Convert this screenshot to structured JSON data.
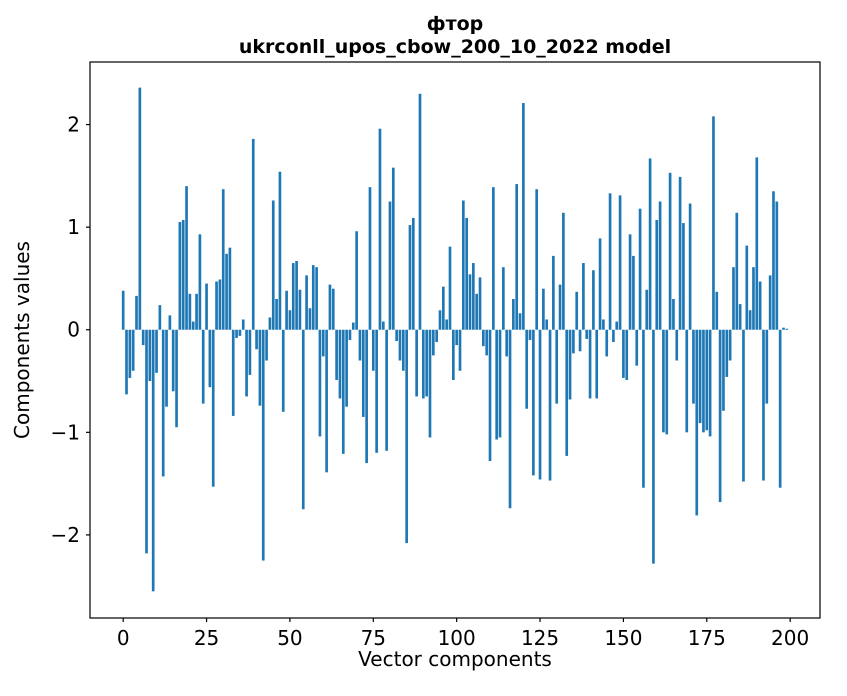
{
  "title": {
    "line1": "фтор",
    "line2": "ukrconll_upos_cbow_200_10_2022 model"
  },
  "axes": {
    "xlabel": "Vector components",
    "ylabel": "Components values"
  },
  "chart_data": {
    "type": "bar",
    "title": "фтор\nukrconll_upos_cbow_200_10_2022 model",
    "xlabel": "Vector components",
    "ylabel": "Components values",
    "x_ticks": [
      0,
      25,
      50,
      75,
      100,
      125,
      150,
      175,
      200
    ],
    "y_ticks": [
      2,
      1,
      0,
      -1,
      -2
    ],
    "xlim": [
      -9.95,
      208.95
    ],
    "ylim": [
      -2.81,
      2.61
    ],
    "grid": false,
    "legend": false,
    "bar_color": "#1f77b4",
    "n_components": 200,
    "values": [
      0.38,
      -0.63,
      -0.47,
      -0.4,
      0.33,
      2.36,
      -0.15,
      -2.18,
      -0.5,
      -2.55,
      -0.42,
      0.24,
      -1.43,
      -0.75,
      0.14,
      -0.6,
      -0.95,
      1.05,
      1.07,
      1.4,
      0.35,
      0.08,
      0.35,
      0.93,
      -0.72,
      0.45,
      -0.56,
      -1.53,
      0.47,
      0.49,
      1.37,
      0.74,
      0.8,
      -0.84,
      -0.08,
      -0.06,
      0.1,
      -0.65,
      -0.44,
      1.86,
      -0.19,
      -0.74,
      -2.25,
      -0.3,
      0.12,
      1.26,
      0.3,
      1.54,
      -0.8,
      0.38,
      0.19,
      0.65,
      0.67,
      0.39,
      -1.75,
      0.53,
      0.21,
      0.63,
      0.61,
      -1.04,
      -0.26,
      -1.39,
      0.44,
      0.4,
      -0.49,
      -0.67,
      -1.21,
      -0.75,
      -0.1,
      0.07,
      0.96,
      -0.3,
      -0.85,
      -1.3,
      1.39,
      -0.4,
      -1.2,
      1.96,
      0.08,
      -1.18,
      1.25,
      1.58,
      -0.11,
      -0.3,
      -0.4,
      -2.08,
      1.02,
      1.09,
      -0.65,
      2.3,
      -0.67,
      -0.65,
      -1.05,
      -0.25,
      -0.12,
      0.19,
      0.42,
      0.1,
      0.81,
      -0.49,
      -0.15,
      -0.4,
      1.26,
      1.09,
      0.54,
      0.65,
      0.35,
      0.51,
      -0.16,
      -0.25,
      -1.28,
      1.39,
      -1.07,
      -1.05,
      0.61,
      -0.26,
      -1.74,
      0.3,
      1.42,
      0.16,
      2.21,
      -0.77,
      -0.1,
      -1.42,
      1.37,
      -1.46,
      0.4,
      0.1,
      -1.47,
      0.72,
      -0.72,
      0.44,
      1.14,
      -1.23,
      -0.68,
      -0.23,
      0.37,
      -0.21,
      0.65,
      -0.09,
      -0.67,
      0.58,
      -0.67,
      0.89,
      0.1,
      -0.26,
      1.33,
      -0.12,
      0.08,
      1.31,
      -0.47,
      -0.49,
      0.93,
      0.72,
      -0.35,
      1.18,
      -1.54,
      0.39,
      1.67,
      -2.28,
      1.07,
      1.25,
      -1.0,
      -1.02,
      1.53,
      0.3,
      -0.3,
      1.49,
      1.04,
      -1.0,
      1.23,
      -0.72,
      -1.81,
      -0.91,
      -1.0,
      -0.98,
      -1.04,
      2.08,
      0.37,
      -1.68,
      -0.79,
      -0.46,
      -0.3,
      0.61,
      1.14,
      0.25,
      -1.48,
      0.82,
      0.19,
      0.61,
      1.68,
      0.47,
      -1.47,
      -0.72,
      0.53,
      1.35,
      1.25,
      -1.54,
      0.02,
      0.01
    ]
  }
}
